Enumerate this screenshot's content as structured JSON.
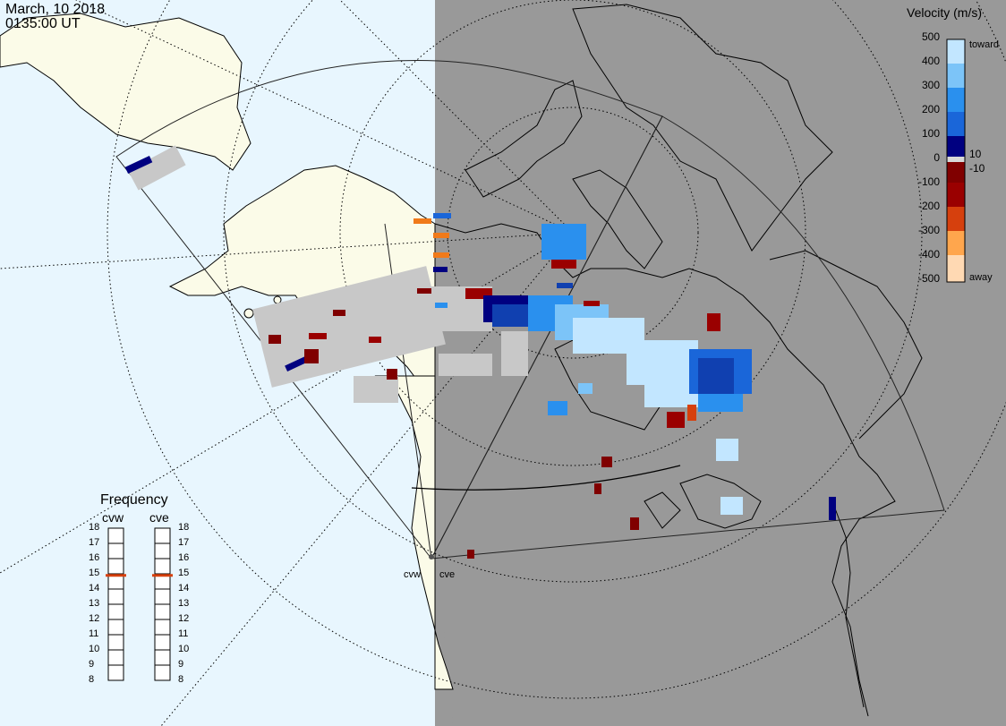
{
  "header": {
    "date": "March, 10 2018",
    "time": "0135:00 UT"
  },
  "colorbar": {
    "title": "Velocity (m/s)",
    "ticks": [
      "500",
      "400",
      "300",
      "200",
      "100",
      "0",
      "-100",
      "-200",
      "-300",
      "-400",
      "-500"
    ],
    "inner_ticks": [
      "10",
      "-10"
    ],
    "toward_label": "toward",
    "away_label": "away",
    "colors": [
      "#ffd9b3",
      "#ffa64d",
      "#f07a1a",
      "#d6400d",
      "#9a0000",
      "#800000",
      "#d8d8d8",
      "#000080",
      "#1040b0",
      "#1a66d9",
      "#2a90ee",
      "#7cc4f8",
      "#c2e6ff"
    ]
  },
  "frequency": {
    "title": "Frequency",
    "radars": [
      {
        "name": "cvw",
        "freq_mhz": 14.9
      },
      {
        "name": "cve",
        "freq_mhz": 14.9
      }
    ],
    "scale": [
      "18",
      "17",
      "16",
      "15",
      "14",
      "13",
      "12",
      "11",
      "10",
      "9",
      "8"
    ],
    "range": [
      8,
      18
    ]
  },
  "radar_sites": [
    "cvw",
    "cve"
  ],
  "colors": {
    "ocean_day": "#e8f6fe",
    "land_day": "#fbfbe8",
    "night": "#999999",
    "ground_scatter": "#c8c8c8"
  }
}
